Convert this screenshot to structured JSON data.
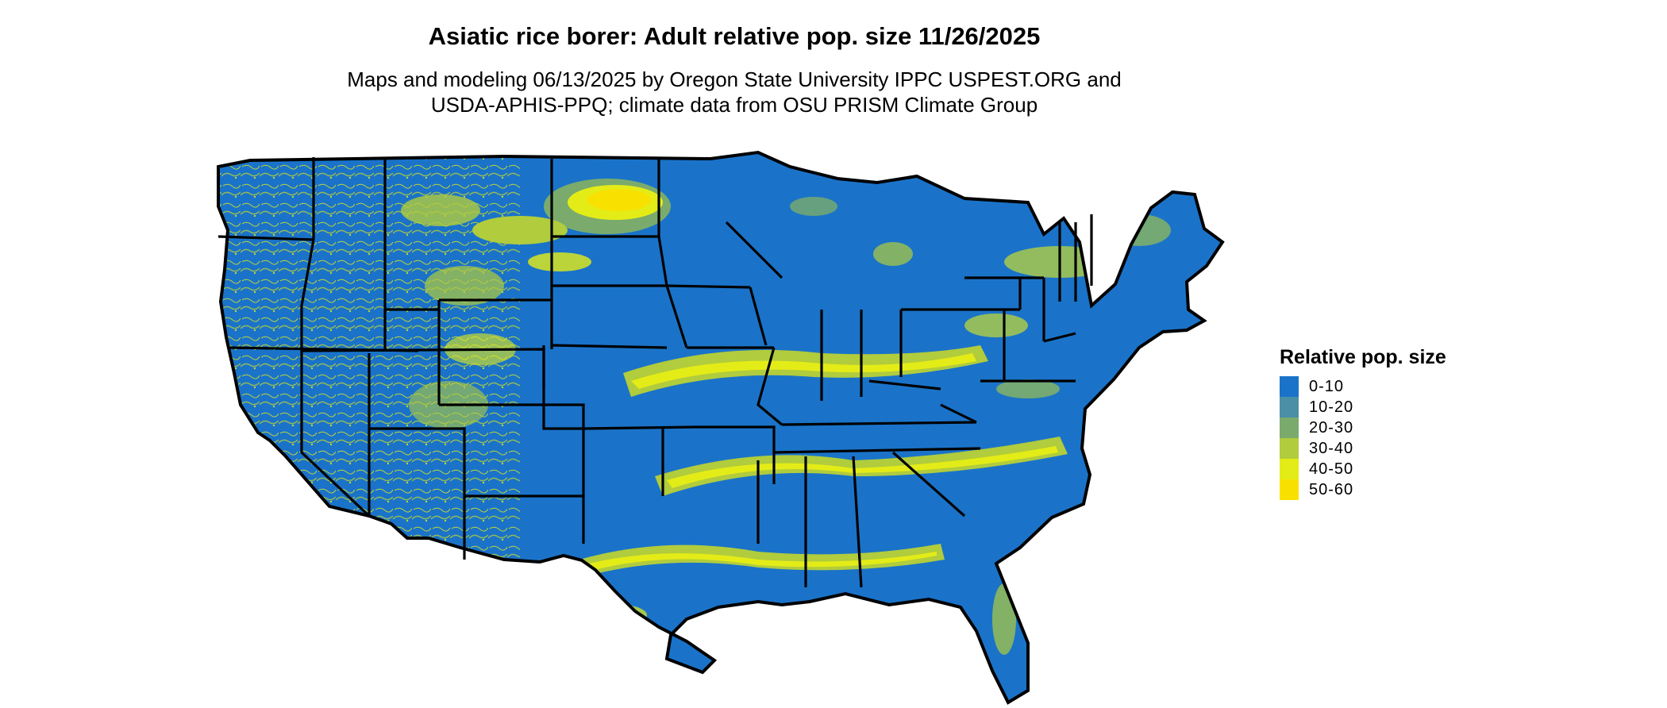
{
  "title": "Asiatic rice borer: Adult relative pop. size 11/26/2025",
  "subtitle_line1": "Maps and modeling 06/13/2025 by Oregon State University IPPC USPEST.ORG and",
  "subtitle_line2": "USDA-APHIS-PPQ; climate data from OSU PRISM Climate Group",
  "map": {
    "region": "contiguous-united-states",
    "base_color": "#1a73c9",
    "border_color": "#000000"
  },
  "legend": {
    "title": "Relative pop. size",
    "items": [
      {
        "label": "0-10",
        "color": "#1a73c9"
      },
      {
        "label": "10-20",
        "color": "#4b8fa6"
      },
      {
        "label": "20-30",
        "color": "#7aab6d"
      },
      {
        "label": "30-40",
        "color": "#b1cc3c"
      },
      {
        "label": "40-50",
        "color": "#e4ec17"
      },
      {
        "label": "50-60",
        "color": "#f8e100"
      }
    ]
  }
}
